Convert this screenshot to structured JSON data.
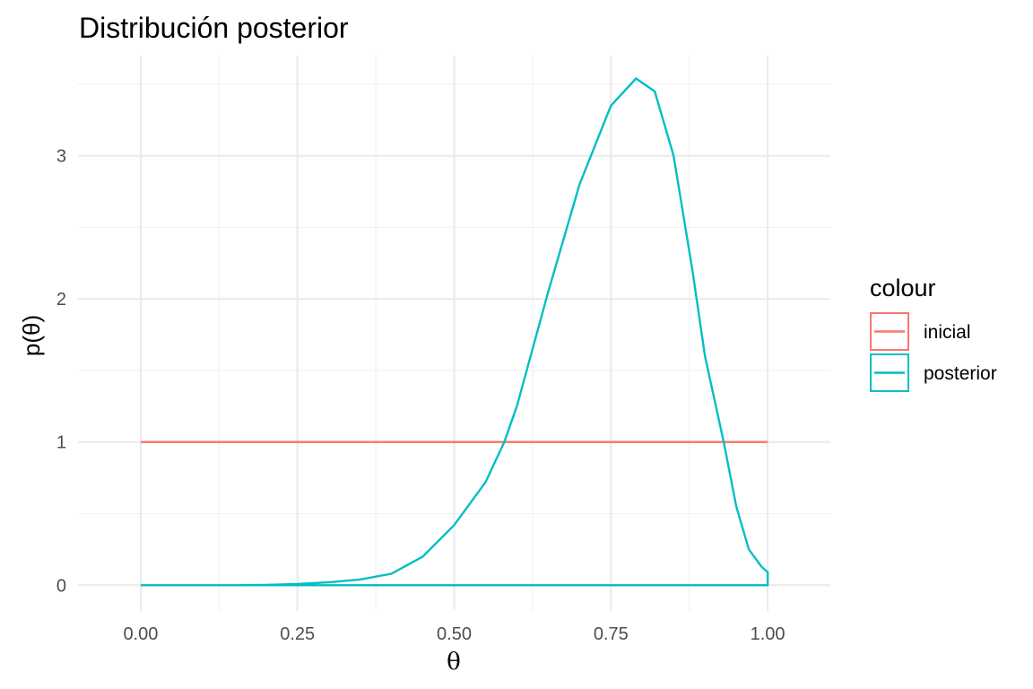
{
  "chart_data": {
    "type": "line",
    "title": "Distribución posterior",
    "xlabel": "θ",
    "ylabel": "p(θ)",
    "xlim": [
      -0.1,
      1.1
    ],
    "ylim": [
      -0.18,
      3.7
    ],
    "x_ticks": [
      0,
      0.25,
      0.5,
      0.75,
      1
    ],
    "x_tick_labels": [
      "0.00",
      "0.25",
      "0.50",
      "0.75",
      "1.00"
    ],
    "y_ticks": [
      0,
      1,
      2,
      3
    ],
    "y_tick_labels": [
      "0",
      "1",
      "2",
      "3"
    ],
    "grid": true,
    "legend": {
      "title": "colour",
      "placement": "right",
      "entries": [
        "inicial",
        "posterior"
      ]
    },
    "series": [
      {
        "name": "inicial",
        "color": "#f8766d",
        "x": [
          0,
          1
        ],
        "y": [
          1,
          1
        ]
      },
      {
        "name": "posterior",
        "color": "#00bfc4",
        "x": [
          0,
          0.05,
          0.1,
          0.15,
          0.2,
          0.25,
          0.3,
          0.35,
          0.4,
          0.45,
          0.5,
          0.55,
          0.58,
          0.6,
          0.65,
          0.7,
          0.75,
          0.79,
          0.82,
          0.85,
          0.88,
          0.9,
          0.93,
          0.95,
          0.97,
          0.99,
          1,
          1,
          0
        ],
        "y": [
          0,
          0,
          0,
          0,
          0.002,
          0.008,
          0.02,
          0.04,
          0.08,
          0.2,
          0.42,
          0.72,
          1,
          1.25,
          2.05,
          2.8,
          3.35,
          3.54,
          3.45,
          3.0,
          2.2,
          1.6,
          1.0,
          0.55,
          0.25,
          0.13,
          0.09,
          0,
          0
        ]
      }
    ]
  }
}
